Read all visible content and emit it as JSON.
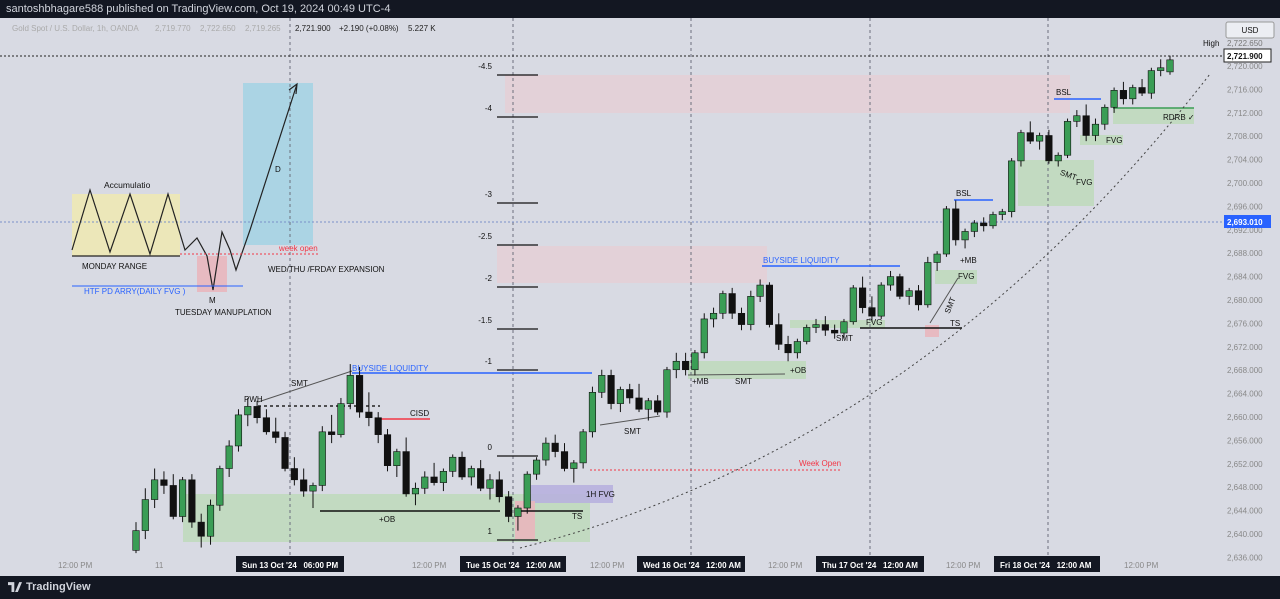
{
  "header": {
    "publisher": "santoshbhagare588 published on TradingView.com, Oct 19, 2024 00:49 UTC-4",
    "symbol": "Gold Spot / U.S. Dollar, 1h, OANDA",
    "ohlc": {
      "open": "2,719.770",
      "high": "2,722.650",
      "low": "2,719.265",
      "close": "2,721.900",
      "change": "+2.190 (+0.08%)",
      "volume": "5.227 K"
    }
  },
  "price_scale": {
    "currency": "USD",
    "ticks": [
      "2,720.000",
      "2,716.000",
      "2,712.000",
      "2,708.000",
      "2,704.000",
      "2,700.000",
      "2,696.000",
      "2,692.000",
      "2,688.000",
      "2,684.000",
      "2,680.000",
      "2,676.000",
      "2,672.000",
      "2,668.000",
      "2,664.000",
      "2,660.000",
      "2,656.000",
      "2,652.000",
      "2,648.000",
      "2,644.000",
      "2,640.000",
      "2,636.000"
    ],
    "high_label": "High",
    "high_value": "2,722.650",
    "last_price": "2,721.900",
    "crosshair_price": "2,693.010"
  },
  "time_axis": {
    "ticks": [
      "12:00 PM",
      "11",
      "12:00 PM",
      "12:00 PM",
      "12:00 PM",
      "12:00 PM",
      "12:00 PM"
    ],
    "highlighted": [
      "Sun 13 Oct '24   06:00 PM",
      "Tue 15 Oct '24   12:00 AM",
      "Wed 16 Oct '24   12:00 AM",
      "Thu 17 Oct '24   12:00 AM",
      "Fri 18 Oct '24   12:00 AM"
    ]
  },
  "annotations": {
    "accumulation": "Accumulatio",
    "monday_range": "MONDAY RANGE",
    "htf": "HTF PD ARRY(DAILY FVG )",
    "m": "M",
    "tuesday": "TUESDAY  MANUPLATION",
    "d": "D",
    "week_open_small": "week open",
    "expansion": "WED/THU /FRDAY EXPANSION",
    "buyside_1": "BUYSIDE LIQUIDITY",
    "buyside_2": "BUYSIDE LIQUIDITY",
    "pwh": "PWH",
    "smt_1": "SMT",
    "cisd": "CISD",
    "ob_1": "+OB",
    "fib": [
      "-4.5",
      "-4",
      "-3",
      "-2.5",
      "-2",
      "-1.5",
      "-1",
      "0",
      "1"
    ],
    "fvg_1h": "1H FVG",
    "ts_1": "TS",
    "smt_2": "SMT",
    "mb_1": "+MB",
    "smt_3": "SMT",
    "ob_2": "+OB",
    "week_open": "Week Open",
    "smt_4": "SMT",
    "fvg_2": "FVG",
    "bsl_1": "BSL",
    "mb_2": "+MB",
    "fvg_3": "FVG",
    "smt_5": "SMT",
    "ts_2": "TS",
    "bsl_2": "BSL",
    "fvg_4": "FVG",
    "smt_6": "SMT",
    "fvg_5": "FVG",
    "rdrb": "RDRB ✓"
  },
  "footer": {
    "brand": "TradingView"
  },
  "colors": {
    "bull": "#3a9d55",
    "bear": "#111111",
    "blue_line": "#2962ff",
    "red_line": "#f23645",
    "bg": "#d8dae3"
  },
  "chart_data": {
    "type": "candlestick",
    "ylim": [
      2634,
      2724
    ],
    "candles": [
      [
        2635.0,
        2640.0,
        2634.5,
        2638.5
      ],
      [
        2638.5,
        2646.0,
        2637.0,
        2644.0
      ],
      [
        2644.0,
        2649.5,
        2642.5,
        2647.5
      ],
      [
        2647.5,
        2649.0,
        2645.0,
        2646.5
      ],
      [
        2646.5,
        2648.5,
        2640.5,
        2641.0
      ],
      [
        2641.0,
        2648.0,
        2640.0,
        2647.5
      ],
      [
        2647.5,
        2648.5,
        2639.0,
        2640.0
      ],
      [
        2640.0,
        2641.5,
        2635.5,
        2637.5
      ],
      [
        2637.5,
        2644.0,
        2636.0,
        2643.0
      ],
      [
        2643.0,
        2650.0,
        2642.0,
        2649.5
      ],
      [
        2649.5,
        2654.5,
        2648.0,
        2653.5
      ],
      [
        2653.5,
        2660.0,
        2652.5,
        2659.0
      ],
      [
        2659.0,
        2662.0,
        2657.0,
        2660.5
      ],
      [
        2660.5,
        2661.5,
        2657.5,
        2658.5
      ],
      [
        2658.5,
        2660.0,
        2655.5,
        2656.0
      ],
      [
        2656.0,
        2658.5,
        2654.0,
        2655.0
      ],
      [
        2655.0,
        2656.0,
        2649.0,
        2649.5
      ],
      [
        2649.5,
        2651.5,
        2646.5,
        2647.5
      ],
      [
        2647.5,
        2649.5,
        2644.5,
        2645.5
      ],
      [
        2645.5,
        2647.0,
        2642.5,
        2646.5
      ],
      [
        2646.5,
        2657.0,
        2645.5,
        2656.0
      ],
      [
        2656.0,
        2659.0,
        2654.0,
        2655.5
      ],
      [
        2655.5,
        2662.0,
        2655.0,
        2661.0
      ],
      [
        2661.0,
        2668.0,
        2660.0,
        2666.0
      ],
      [
        2666.0,
        2667.5,
        2658.5,
        2659.5
      ],
      [
        2659.5,
        2663.0,
        2657.0,
        2658.5
      ],
      [
        2658.5,
        2659.5,
        2654.0,
        2655.5
      ],
      [
        2655.5,
        2656.5,
        2649.0,
        2650.0
      ],
      [
        2650.0,
        2653.0,
        2648.0,
        2652.5
      ],
      [
        2652.5,
        2655.0,
        2644.5,
        2645.0
      ],
      [
        2645.0,
        2647.0,
        2643.0,
        2646.0
      ],
      [
        2646.0,
        2649.0,
        2645.0,
        2648.0
      ],
      [
        2648.0,
        2650.5,
        2646.5,
        2647.0
      ],
      [
        2647.0,
        2649.5,
        2645.5,
        2649.0
      ],
      [
        2649.0,
        2652.0,
        2648.0,
        2651.5
      ],
      [
        2651.5,
        2652.5,
        2647.5,
        2648.0
      ],
      [
        2648.0,
        2650.0,
        2646.5,
        2649.5
      ],
      [
        2649.5,
        2651.0,
        2645.5,
        2646.0
      ],
      [
        2646.0,
        2648.5,
        2644.0,
        2647.5
      ],
      [
        2647.5,
        2649.0,
        2643.5,
        2644.5
      ],
      [
        2644.5,
        2645.5,
        2640.0,
        2641.0
      ],
      [
        2641.0,
        2643.0,
        2638.5,
        2642.5
      ],
      [
        2642.5,
        2649.0,
        2641.5,
        2648.5
      ],
      [
        2648.5,
        2651.5,
        2647.5,
        2651.0
      ],
      [
        2651.0,
        2655.0,
        2650.0,
        2654.0
      ],
      [
        2654.0,
        2655.5,
        2651.5,
        2652.5
      ],
      [
        2652.5,
        2654.0,
        2649.0,
        2649.5
      ],
      [
        2649.5,
        2651.0,
        2647.0,
        2650.5
      ],
      [
        2650.5,
        2656.5,
        2649.5,
        2656.0
      ],
      [
        2656.0,
        2664.0,
        2655.0,
        2663.0
      ],
      [
        2663.0,
        2667.0,
        2662.0,
        2666.0
      ],
      [
        2666.0,
        2667.0,
        2660.0,
        2661.0
      ],
      [
        2661.0,
        2664.0,
        2659.5,
        2663.5
      ],
      [
        2663.5,
        2664.5,
        2661.0,
        2662.0
      ],
      [
        2662.0,
        2664.5,
        2659.5,
        2660.0
      ],
      [
        2660.0,
        2662.0,
        2658.0,
        2661.5
      ],
      [
        2661.5,
        2662.5,
        2659.0,
        2659.5
      ],
      [
        2659.5,
        2667.5,
        2658.5,
        2667.0
      ],
      [
        2667.0,
        2670.0,
        2665.5,
        2668.5
      ],
      [
        2668.5,
        2670.0,
        2666.0,
        2667.0
      ],
      [
        2667.0,
        2670.5,
        2666.0,
        2670.0
      ],
      [
        2670.0,
        2677.0,
        2669.0,
        2676.0
      ],
      [
        2676.0,
        2678.0,
        2674.5,
        2677.0
      ],
      [
        2677.0,
        2681.0,
        2676.0,
        2680.5
      ],
      [
        2680.5,
        2681.5,
        2676.0,
        2677.0
      ],
      [
        2677.0,
        2678.0,
        2674.0,
        2675.0
      ],
      [
        2675.0,
        2681.0,
        2674.0,
        2680.0
      ],
      [
        2680.0,
        2683.0,
        2679.0,
        2682.0
      ],
      [
        2682.0,
        2682.5,
        2674.5,
        2675.0
      ],
      [
        2675.0,
        2677.0,
        2670.5,
        2671.5
      ],
      [
        2671.5,
        2673.0,
        2668.5,
        2670.0
      ],
      [
        2670.0,
        2672.5,
        2669.0,
        2672.0
      ],
      [
        2672.0,
        2675.0,
        2671.5,
        2674.5
      ],
      [
        2674.5,
        2676.0,
        2673.5,
        2675.0
      ],
      [
        2675.0,
        2676.5,
        2673.0,
        2674.0
      ],
      [
        2674.0,
        2675.0,
        2672.5,
        2673.5
      ],
      [
        2673.5,
        2676.0,
        2672.5,
        2675.5
      ],
      [
        2675.5,
        2682.0,
        2675.0,
        2681.5
      ],
      [
        2681.5,
        2683.5,
        2677.0,
        2678.0
      ],
      [
        2678.0,
        2680.0,
        2675.5,
        2676.5
      ],
      [
        2676.5,
        2682.5,
        2676.0,
        2682.0
      ],
      [
        2682.0,
        2684.5,
        2681.0,
        2683.5
      ],
      [
        2683.5,
        2684.0,
        2679.5,
        2680.0
      ],
      [
        2680.0,
        2681.5,
        2678.5,
        2681.0
      ],
      [
        2681.0,
        2682.0,
        2677.5,
        2678.5
      ],
      [
        2678.5,
        2687.0,
        2678.0,
        2686.0
      ],
      [
        2686.0,
        2688.0,
        2684.5,
        2687.5
      ],
      [
        2687.5,
        2696.0,
        2687.0,
        2695.5
      ],
      [
        2695.5,
        2697.0,
        2689.0,
        2690.0
      ],
      [
        2690.0,
        2692.0,
        2688.5,
        2691.5
      ],
      [
        2691.5,
        2693.5,
        2690.5,
        2693.0
      ],
      [
        2693.0,
        2694.0,
        2691.5,
        2692.5
      ],
      [
        2692.5,
        2695.0,
        2692.0,
        2694.5
      ],
      [
        2694.5,
        2695.5,
        2693.5,
        2695.0
      ],
      [
        2695.0,
        2704.5,
        2694.0,
        2704.0
      ],
      [
        2704.0,
        2709.5,
        2703.0,
        2709.0
      ],
      [
        2709.0,
        2711.0,
        2707.0,
        2707.5
      ],
      [
        2707.5,
        2709.0,
        2706.0,
        2708.5
      ],
      [
        2708.5,
        2709.5,
        2703.5,
        2704.0
      ],
      [
        2704.0,
        2705.5,
        2703.0,
        2705.0
      ],
      [
        2705.0,
        2711.5,
        2704.5,
        2711.0
      ],
      [
        2711.0,
        2713.0,
        2710.0,
        2712.0
      ],
      [
        2712.0,
        2714.0,
        2707.5,
        2708.5
      ],
      [
        2708.5,
        2711.5,
        2707.5,
        2710.5
      ],
      [
        2710.5,
        2714.0,
        2709.5,
        2713.5
      ],
      [
        2713.5,
        2717.0,
        2712.5,
        2716.5
      ],
      [
        2716.5,
        2718.0,
        2714.0,
        2715.0
      ],
      [
        2715.0,
        2717.5,
        2714.0,
        2717.0
      ],
      [
        2717.0,
        2718.5,
        2715.5,
        2716.0
      ],
      [
        2716.0,
        2720.5,
        2715.0,
        2720.0
      ],
      [
        2720.0,
        2722.0,
        2719.0,
        2720.5
      ],
      [
        2719.77,
        2722.65,
        2719.265,
        2721.9
      ]
    ]
  }
}
